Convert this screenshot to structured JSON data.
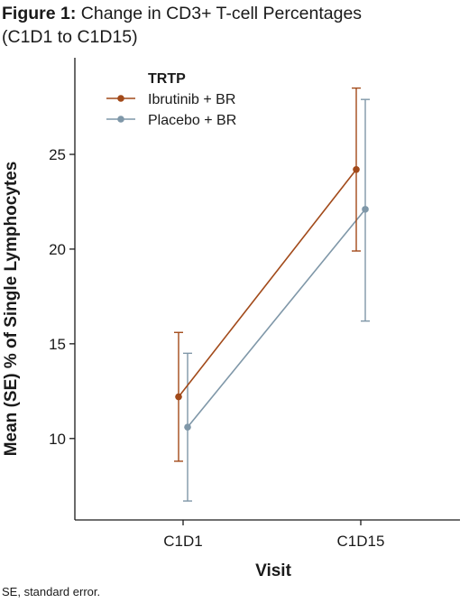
{
  "figure": {
    "label": "Figure 1:",
    "title_line1": "Change in CD3+ T-cell Percentages",
    "title_line2": "(C1D1 to C1D15)",
    "footnote": "SE, standard error."
  },
  "chart_data": {
    "type": "line",
    "title": "",
    "xlabel": "Visit",
    "ylabel": "Mean (SE) % of Single Lymphocytes",
    "categories": [
      "C1D1",
      "C1D15"
    ],
    "yticks": [
      10,
      15,
      20,
      25
    ],
    "ylim": [
      5.7,
      30.1
    ],
    "legend_title": "TRTP",
    "legend_position": "top-left",
    "grid": false,
    "series": [
      {
        "name": "Ibrutinib + BR",
        "color": "#a24a1a",
        "values": [
          12.2,
          24.2
        ],
        "lower": [
          8.8,
          19.9
        ],
        "upper": [
          15.6,
          28.5
        ]
      },
      {
        "name": "Placebo + BR",
        "color": "#7f97a8",
        "values": [
          10.6,
          22.1
        ],
        "lower": [
          6.7,
          16.2
        ],
        "upper": [
          14.5,
          27.9
        ]
      }
    ]
  }
}
